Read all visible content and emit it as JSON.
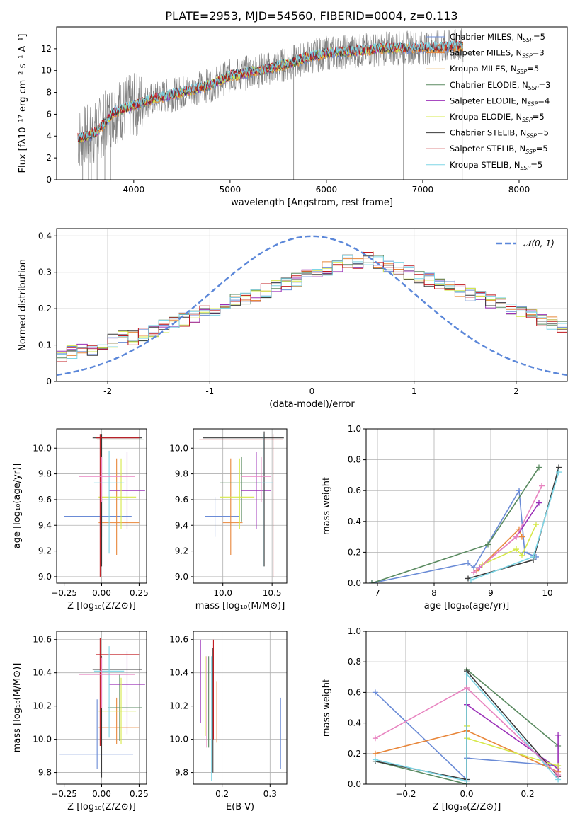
{
  "figure": {
    "title": "PLATE=2953, MJD=54560, FIBERID=0004, z=0.113"
  },
  "colors": {
    "Chabrier MILES": "#6a8bd6",
    "Salpeter MILES": "#e8863a",
    "Kroupa MILES": "#e8a23a",
    "Chabrier ELODIE": "#5a8a60",
    "Salpeter ELODIE": "#9b30b8",
    "Kroupa ELODIE": "#d6e84a",
    "Chabrier STELIB": "#3a3a3a",
    "Salpeter STELIB": "#c0181e",
    "Kroupa STELIB": "#7ed6e6",
    "data": "#808080",
    "normal": "#5b87d9",
    "pink": "#e884c0",
    "grid": "#b0b0b0"
  },
  "chart_data": [
    {
      "id": "spectrum",
      "type": "line",
      "xlabel": "wavelength [Angstrom, rest frame]",
      "ylabel": "Flux [fλ10⁻¹⁷ erg cm⁻² s⁻¹ A⁻¹]",
      "xlim": [
        3200,
        8500
      ],
      "ylim": [
        0,
        14
      ],
      "xticks": [
        4000,
        5000,
        6000,
        7000,
        8000
      ],
      "yticks": [
        0,
        2,
        4,
        6,
        8,
        10,
        12
      ],
      "grid": false,
      "legend_position": "right",
      "legend": [
        {
          "label": "Chabrier MILES, N",
          "sub": "SSP",
          "suffix": "=5"
        },
        {
          "label": "Salpeter MILES, N",
          "sub": "SSP",
          "suffix": "=3"
        },
        {
          "label": "Kroupa MILES, N",
          "sub": "SSP",
          "suffix": "=5"
        },
        {
          "label": "Chabrier ELODIE, N",
          "sub": "SSP",
          "suffix": "=3"
        },
        {
          "label": "Salpeter ELODIE, N",
          "sub": "SSP",
          "suffix": "=4"
        },
        {
          "label": "Kroupa ELODIE, N",
          "sub": "SSP",
          "suffix": "=5"
        },
        {
          "label": "Chabrier STELIB, N",
          "sub": "SSP",
          "suffix": "=5"
        },
        {
          "label": "Salpeter STELIB, N",
          "sub": "SSP",
          "suffix": "=5"
        },
        {
          "label": "Kroupa STELIB, N",
          "sub": "SSP",
          "suffix": "=5"
        }
      ],
      "continuum": {
        "x": [
          3400,
          3500,
          3600,
          3700,
          3800,
          4000,
          4200,
          4500,
          4800,
          5000,
          5300,
          5600,
          5800,
          6000,
          6300,
          6600,
          6900,
          7200,
          7400
        ],
        "y": [
          3.8,
          3.9,
          4.3,
          5.2,
          6.2,
          6.8,
          7.4,
          8.0,
          8.7,
          9.5,
          10.0,
          10.6,
          11.2,
          11.6,
          11.8,
          12.0,
          12.1,
          12.1,
          12.3
        ]
      }
    },
    {
      "id": "residuals",
      "type": "histogram",
      "xlabel": "(data-model)/error",
      "ylabel": "Normed distribution",
      "xlim": [
        -2.5,
        2.5
      ],
      "ylim": [
        0,
        0.42
      ],
      "xticks": [
        -2,
        -1,
        0,
        1,
        2
      ],
      "yticks": [
        0.0,
        0.1,
        0.2,
        0.3,
        0.4
      ],
      "grid": true,
      "bin_width": 0.1,
      "bin_start": -2.5,
      "legend_position": "top-right",
      "legend_label": "𝒩(0, 1)",
      "histogram_values": [
        0.07,
        0.08,
        0.09,
        0.09,
        0.1,
        0.11,
        0.12,
        0.12,
        0.13,
        0.14,
        0.15,
        0.16,
        0.17,
        0.18,
        0.19,
        0.2,
        0.21,
        0.22,
        0.23,
        0.24,
        0.25,
        0.26,
        0.27,
        0.28,
        0.29,
        0.3,
        0.31,
        0.32,
        0.33,
        0.33,
        0.34,
        0.33,
        0.32,
        0.31,
        0.3,
        0.29,
        0.28,
        0.27,
        0.26,
        0.25,
        0.24,
        0.23,
        0.22,
        0.21,
        0.2,
        0.19,
        0.18,
        0.17,
        0.16,
        0.15
      ]
    },
    {
      "id": "age-vs-Z",
      "type": "errorbar",
      "xlabel": "Z [log₁₀(Z/Z⊙)]",
      "ylabel": "age  [log₁₀(age/yr)]",
      "xlim": [
        -0.3,
        0.3
      ],
      "ylim": [
        8.95,
        10.15
      ],
      "xticks": [
        "-0.25",
        "0.00",
        "0.25"
      ],
      "yticks": [
        "9.0",
        "9.2",
        "9.4",
        "9.6",
        "9.8",
        "10.0"
      ],
      "grid": true,
      "points": [
        {
          "series": "Chabrier MILES",
          "x": 0.0,
          "xerr": [
            0.25,
            0.2
          ],
          "y": 9.47,
          "yerr": [
            0.16,
            0.15
          ]
        },
        {
          "series": "Salpeter MILES",
          "x": 0.1,
          "xerr": [
            0.12,
            0.15
          ],
          "y": 9.42,
          "yerr": [
            0.25,
            0.5
          ]
        },
        {
          "series": "Chabrier ELODIE",
          "x": 0.0,
          "xerr": [
            0.03,
            0.28
          ],
          "y": 10.07,
          "yerr": [
            0.97,
            0.04
          ]
        },
        {
          "series": "Salpeter ELODIE",
          "x": 0.17,
          "xerr": [
            0.12,
            0.12
          ],
          "y": 9.67,
          "yerr": [
            0.3,
            0.3
          ]
        },
        {
          "series": "Kroupa ELODIE",
          "x": 0.13,
          "xerr": [
            0.15,
            0.1
          ],
          "y": 9.62,
          "yerr": [
            0.25,
            0.3
          ]
        },
        {
          "series": "Chabrier STELIB",
          "x": 0.0,
          "xerr": [
            0.06,
            0.27
          ],
          "y": 10.08,
          "yerr": [
            1.0,
            0.03
          ]
        },
        {
          "series": "Salpeter STELIB",
          "x": -0.01,
          "xerr": [
            0.03,
            0.26
          ],
          "y": 10.08,
          "yerr": [
            1.08,
            0.03
          ]
        },
        {
          "series": "Kroupa STELIB",
          "x": 0.05,
          "xerr": [
            0.1,
            0.1
          ],
          "y": 9.73,
          "yerr": [
            0.55,
            0.25
          ]
        },
        {
          "series": "pink",
          "x": 0.0,
          "xerr": [
            0.15,
            0.22
          ],
          "y": 9.78,
          "yerr": [
            0.2,
            0.15
          ]
        }
      ]
    },
    {
      "id": "age-vs-mass",
      "type": "errorbar",
      "xlabel": "mass [log₁₀(M/M⊙)]",
      "ylabel": "",
      "xlim": [
        9.7,
        10.65
      ],
      "ylim": [
        8.95,
        10.15
      ],
      "xticks": [
        "10.0",
        "10.5"
      ],
      "yticks": [
        "9.0",
        "9.2",
        "9.4",
        "9.6",
        "9.8",
        "10.0"
      ],
      "grid": true,
      "points": [
        {
          "series": "Chabrier MILES",
          "x": 9.92,
          "xerr": [
            0.1,
            0.25
          ],
          "y": 9.47,
          "yerr": [
            0.16,
            0.15
          ]
        },
        {
          "series": "Salpeter MILES",
          "x": 10.08,
          "xerr": [
            0.08,
            0.12
          ],
          "y": 9.42,
          "yerr": [
            0.25,
            0.5
          ]
        },
        {
          "series": "Chabrier ELODIE",
          "x": 10.19,
          "xerr": [
            0.22,
            0.2
          ],
          "y": 9.73,
          "yerr": [
            0.3,
            0.2
          ]
        },
        {
          "series": "Salpeter ELODIE",
          "x": 10.34,
          "xerr": [
            0.15,
            0.15
          ],
          "y": 9.67,
          "yerr": [
            0.3,
            0.3
          ]
        },
        {
          "series": "Kroupa ELODIE",
          "x": 10.17,
          "xerr": [
            0.2,
            0.15
          ],
          "y": 9.62,
          "yerr": [
            0.25,
            0.3
          ]
        },
        {
          "series": "Chabrier STELIB",
          "x": 10.42,
          "xerr": [
            0.62,
            0.2
          ],
          "y": 10.08,
          "yerr": [
            1.0,
            0.05
          ]
        },
        {
          "series": "Salpeter STELIB",
          "x": 10.51,
          "xerr": [
            0.75,
            0.1
          ],
          "y": 10.07,
          "yerr": [
            1.07,
            0.04
          ]
        },
        {
          "series": "Kroupa STELIB",
          "x": 10.41,
          "xerr": [
            0.05,
            0.1
          ],
          "y": 9.73,
          "yerr": [
            0.65,
            0.38
          ]
        },
        {
          "series": "pink",
          "x": 10.39,
          "xerr": [
            0.2,
            0.1
          ],
          "y": 9.78,
          "yerr": [
            0.2,
            0.15
          ]
        }
      ]
    },
    {
      "id": "weight-vs-age",
      "type": "line",
      "xlabel": "age  [log₁₀(age/yr)]",
      "ylabel": "mass weight",
      "xlim": [
        6.8,
        10.35
      ],
      "ylim": [
        0.0,
        1.0
      ],
      "xticks": [
        "7",
        "8",
        "9",
        "10"
      ],
      "yticks": [
        "0.0",
        "0.2",
        "0.4",
        "0.6",
        "0.8",
        "1.0"
      ],
      "grid": true,
      "series": [
        {
          "name": "Chabrier MILES",
          "x": [
            6.9,
            8.6,
            8.7,
            9.5,
            9.6,
            9.8
          ],
          "y": [
            0.0,
            0.13,
            0.1,
            0.6,
            0.2,
            0.17
          ]
        },
        {
          "name": "Salpeter MILES",
          "x": [
            8.75,
            9.5,
            9.55
          ],
          "y": [
            0.08,
            0.35,
            0.3
          ]
        },
        {
          "name": "Chabrier ELODIE",
          "x": [
            6.9,
            8.95,
            9.85
          ],
          "y": [
            0.0,
            0.25,
            0.75
          ]
        },
        {
          "name": "Salpeter ELODIE",
          "x": [
            8.8,
            9.45,
            9.85
          ],
          "y": [
            0.1,
            0.3,
            0.52
          ]
        },
        {
          "name": "Kroupa ELODIE",
          "x": [
            8.85,
            9.45,
            9.55,
            9.8
          ],
          "y": [
            0.12,
            0.22,
            0.18,
            0.38
          ]
        },
        {
          "name": "Chabrier STELIB",
          "x": [
            8.6,
            9.75,
            10.2
          ],
          "y": [
            0.03,
            0.15,
            0.75
          ]
        },
        {
          "name": "Kroupa STELIB",
          "x": [
            8.65,
            9.75,
            10.2
          ],
          "y": [
            0.02,
            0.17,
            0.72
          ]
        },
        {
          "name": "pink",
          "x": [
            8.7,
            9.45,
            9.9
          ],
          "y": [
            0.07,
            0.3,
            0.63
          ]
        }
      ]
    },
    {
      "id": "mass-vs-Z",
      "type": "errorbar",
      "xlabel": "Z [log₁₀(Z/Z⊙)]",
      "ylabel": "mass [log₁₀(M/M⊙)]",
      "xlim": [
        -0.3,
        0.3
      ],
      "ylim": [
        9.73,
        10.65
      ],
      "xticks": [
        "-0.25",
        "0.00",
        "0.25"
      ],
      "yticks": [
        "9.8",
        "10.0",
        "10.2",
        "10.4",
        "10.6"
      ],
      "grid": true,
      "points": [
        {
          "series": "Chabrier MILES",
          "x": -0.03,
          "xerr": [
            0.25,
            0.24
          ],
          "y": 9.91,
          "yerr": [
            0.09,
            0.33
          ]
        },
        {
          "series": "Salpeter MILES",
          "x": 0.1,
          "xerr": [
            0.12,
            0.15
          ],
          "y": 10.07,
          "yerr": [
            0.1,
            0.18
          ]
        },
        {
          "series": "Chabrier ELODIE",
          "x": 0.12,
          "xerr": [
            0.08,
            0.15
          ],
          "y": 10.19,
          "yerr": [
            0.2,
            0.2
          ]
        },
        {
          "series": "Salpeter ELODIE",
          "x": 0.17,
          "xerr": [
            0.12,
            0.12
          ],
          "y": 10.33,
          "yerr": [
            0.3,
            0.2
          ]
        },
        {
          "series": "Kroupa ELODIE",
          "x": 0.13,
          "xerr": [
            0.15,
            0.1
          ],
          "y": 10.17,
          "yerr": [
            0.2,
            0.2
          ]
        },
        {
          "series": "Chabrier STELIB",
          "x": 0.0,
          "xerr": [
            0.06,
            0.27
          ],
          "y": 10.42,
          "yerr": [
            0.65,
            0.08
          ]
        },
        {
          "series": "Salpeter STELIB",
          "x": -0.01,
          "xerr": [
            0.03,
            0.26
          ],
          "y": 10.51,
          "yerr": [
            0.55,
            0.1
          ]
        },
        {
          "series": "Kroupa STELIB",
          "x": 0.05,
          "xerr": [
            0.1,
            0.1
          ],
          "y": 10.41,
          "yerr": [
            0.4,
            0.15
          ]
        },
        {
          "series": "pink",
          "x": 0.0,
          "xerr": [
            0.15,
            0.22
          ],
          "y": 10.39,
          "yerr": [
            0.2,
            0.1
          ]
        }
      ]
    },
    {
      "id": "mass-vs-ebv",
      "type": "errorbar",
      "xlabel": "E(B-V)",
      "ylabel": "",
      "xlim": [
        0.14,
        0.335
      ],
      "ylim": [
        9.73,
        10.65
      ],
      "xticks": [
        "0.2",
        "0.3"
      ],
      "yticks": [
        "9.8",
        "10.0",
        "10.2",
        "10.4",
        "10.6"
      ],
      "grid": true,
      "points": [
        {
          "series": "Chabrier MILES",
          "x": 0.322,
          "xerr": [
            0,
            0
          ],
          "y": 10.0,
          "yerr": [
            0.18,
            0.25
          ]
        },
        {
          "series": "Salpeter MILES",
          "x": 0.189,
          "xerr": [
            0,
            0
          ],
          "y": 10.15,
          "yerr": [
            0.17,
            0.2
          ]
        },
        {
          "series": "Chabrier ELODIE",
          "x": 0.172,
          "xerr": [
            0,
            0
          ],
          "y": 10.2,
          "yerr": [
            0.25,
            0.3
          ]
        },
        {
          "series": "Salpeter ELODIE",
          "x": 0.155,
          "xerr": [
            0,
            0
          ],
          "y": 10.35,
          "yerr": [
            0.25,
            0.25
          ]
        },
        {
          "series": "Kroupa ELODIE",
          "x": 0.165,
          "xerr": [
            0,
            0
          ],
          "y": 10.22,
          "yerr": [
            0.2,
            0.28
          ]
        },
        {
          "series": "Chabrier STELIB",
          "x": 0.181,
          "xerr": [
            0,
            0
          ],
          "y": 10.2,
          "yerr": [
            0.4,
            0.35
          ]
        },
        {
          "series": "Salpeter STELIB",
          "x": 0.182,
          "xerr": [
            0,
            0
          ],
          "y": 10.3,
          "yerr": [
            0.3,
            0.3
          ]
        },
        {
          "series": "Kroupa STELIB",
          "x": 0.178,
          "xerr": [
            0,
            0
          ],
          "y": 10.15,
          "yerr": [
            0.4,
            0.35
          ]
        },
        {
          "series": "pink",
          "x": 0.168,
          "xerr": [
            0,
            0
          ],
          "y": 10.25,
          "yerr": [
            0.3,
            0.25
          ]
        }
      ]
    },
    {
      "id": "weight-vs-Z",
      "type": "line",
      "xlabel": "Z [log₁₀(Z/Z⊙)]",
      "ylabel": "mass weight",
      "xlim": [
        -0.33,
        0.33
      ],
      "ylim": [
        0.0,
        1.0
      ],
      "xticks": [
        "-0.2",
        "0.0",
        "0.2"
      ],
      "yticks": [
        "0.0",
        "0.2",
        "0.4",
        "0.6",
        "0.8",
        "1.0"
      ],
      "grid": true,
      "series": [
        {
          "name": "Chabrier MILES",
          "x": [
            -0.3,
            0.0,
            0.0,
            0.3
          ],
          "y": [
            0.6,
            0.03,
            0.17,
            0.12
          ]
        },
        {
          "name": "Salpeter MILES",
          "x": [
            -0.3,
            0.0,
            0.3
          ],
          "y": [
            0.2,
            0.35,
            0.08
          ]
        },
        {
          "name": "Chabrier ELODIE",
          "x": [
            -0.3,
            0.0,
            0.0,
            0.3
          ],
          "y": [
            0.15,
            0.0,
            0.75,
            0.25
          ]
        },
        {
          "name": "Salpeter ELODIE",
          "x": [
            0.0,
            0.3,
            0.3
          ],
          "y": [
            0.52,
            0.1,
            0.32
          ]
        },
        {
          "name": "Kroupa ELODIE",
          "x": [
            0.0,
            0.0,
            0.3
          ],
          "y": [
            0.38,
            0.3,
            0.12
          ]
        },
        {
          "name": "Chabrier STELIB",
          "x": [
            -0.3,
            0.0,
            0.0,
            0.3
          ],
          "y": [
            0.15,
            0.03,
            0.74,
            0.05
          ]
        },
        {
          "name": "Kroupa STELIB",
          "x": [
            -0.3,
            0.0,
            0.0,
            0.3
          ],
          "y": [
            0.16,
            0.02,
            0.72,
            0.03
          ]
        },
        {
          "name": "pink",
          "x": [
            -0.3,
            0.0,
            0.3
          ],
          "y": [
            0.3,
            0.63,
            0.06
          ]
        }
      ]
    }
  ]
}
